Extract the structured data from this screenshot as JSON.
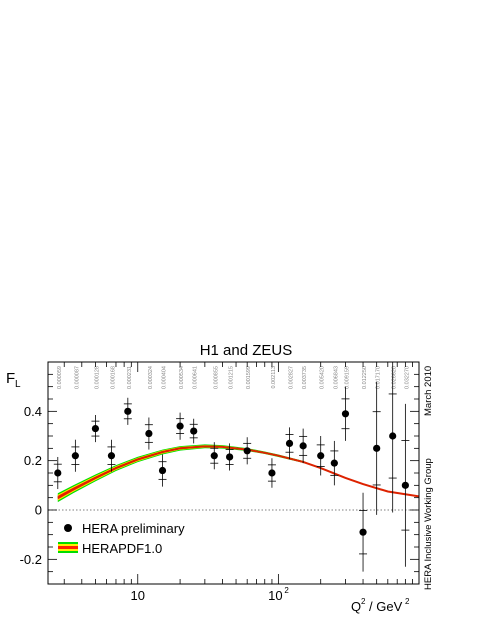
{
  "chart_data": {
    "type": "scatter",
    "title": "H1 and ZEUS",
    "ylabel": "F_L",
    "xlabel": "Q^2 / GeV^2",
    "xscale": "log",
    "xlim": [
      2.3,
      1000
    ],
    "ylim": [
      -0.3,
      0.6
    ],
    "y_ticks": [
      -0.2,
      0,
      0.2,
      0.4
    ],
    "y_tick_labels": [
      "-0.2",
      "0",
      "0.2",
      "0.4"
    ],
    "x_tick_labels": [
      "10",
      "10^2"
    ],
    "side_labels": [
      "HERA Inclusive Working Group",
      "March 2010"
    ],
    "x_bin_labels": [
      "0.000059",
      "0.000087",
      "0.000128",
      "0.000168",
      "0.000231",
      "0.000324",
      "0.000404",
      "0.000534",
      "0.000641",
      "0.000855",
      "0.001215",
      "0.001599",
      "0.002113",
      "0.002827",
      "0.003735",
      "0.005420",
      "0.006843",
      "0.009159",
      "0.012250",
      "0.017170",
      "0.026620",
      "0.032270"
    ],
    "colors": {
      "points": "#000000",
      "band_outer": "#00dd00",
      "band_middle": "#ffee00",
      "band_inner": "#ff2200",
      "curve": "#dd2200",
      "zero_line": "#000000"
    },
    "legend_placement": "bottom-left",
    "series": [
      {
        "name": "HERA preliminary",
        "kind": "points",
        "x": [
          2.7,
          3.6,
          5.0,
          6.5,
          8.5,
          12,
          15,
          20,
          25,
          35,
          45,
          60,
          90,
          120,
          150,
          200,
          250,
          300,
          400,
          500,
          650,
          800
        ],
        "y": [
          0.15,
          0.22,
          0.33,
          0.22,
          0.4,
          0.31,
          0.16,
          0.34,
          0.32,
          0.22,
          0.215,
          0.24,
          0.15,
          0.27,
          0.26,
          0.22,
          0.19,
          0.39,
          -0.09,
          0.25,
          0.3,
          0.1
        ],
        "err": [
          0.065,
          0.065,
          0.055,
          0.065,
          0.055,
          0.065,
          0.065,
          0.055,
          0.05,
          0.055,
          0.055,
          0.055,
          0.06,
          0.065,
          0.07,
          0.08,
          0.09,
          0.11,
          0.16,
          0.27,
          0.31,
          0.33
        ]
      },
      {
        "name": "HERAPDF1.0",
        "kind": "band",
        "x": [
          2.7,
          3.5,
          5,
          7,
          10,
          15,
          20,
          30,
          40,
          60,
          80,
          100,
          150,
          200,
          300,
          400,
          600,
          1000
        ],
        "y": [
          0.05,
          0.085,
          0.13,
          0.17,
          0.205,
          0.235,
          0.25,
          0.258,
          0.256,
          0.245,
          0.232,
          0.22,
          0.195,
          0.17,
          0.13,
          0.105,
          0.075,
          0.055
        ],
        "band_width": [
          0.018,
          0.016,
          0.014,
          0.012,
          0.011,
          0.01,
          0.009,
          0.008,
          0.007,
          0.006,
          0.005,
          0.005,
          0.004,
          0.004,
          0.003,
          0.003,
          0.003,
          0.003
        ],
        "band_extent": 160
      }
    ]
  }
}
